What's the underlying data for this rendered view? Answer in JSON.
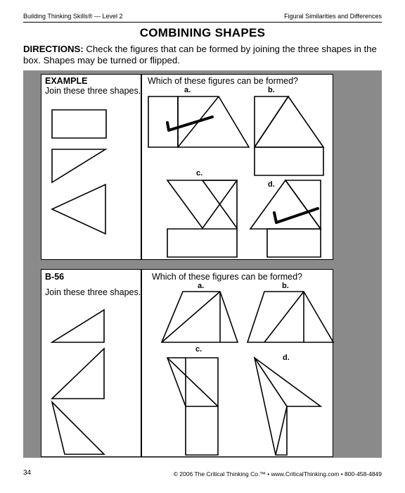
{
  "header": {
    "left": "Building Thinking Skills® — Level 2",
    "right": "Figural Similarities and Differences"
  },
  "title": "COMBINING SHAPES",
  "directions": {
    "label": "DIRECTIONS:",
    "text": " Check the figures that can be formed by joining the three shapes in the box. Shapes may be turned or flipped."
  },
  "example": {
    "label": "EXAMPLE",
    "instruction": "Join these three shapes.",
    "question": "Which of these figures can be formed?",
    "options": [
      "a.",
      "b.",
      "c.",
      "d."
    ]
  },
  "problem": {
    "label": "B-56",
    "instruction": "Join these three shapes.",
    "question": "Which of these figures can be formed?",
    "options": [
      "a.",
      "b.",
      "c.",
      "d."
    ]
  },
  "footer": {
    "page": "34",
    "copyright": "© 2006 The Critical Thinking Co.™ • www.CriticalThinking.com • 800-458-4849"
  }
}
